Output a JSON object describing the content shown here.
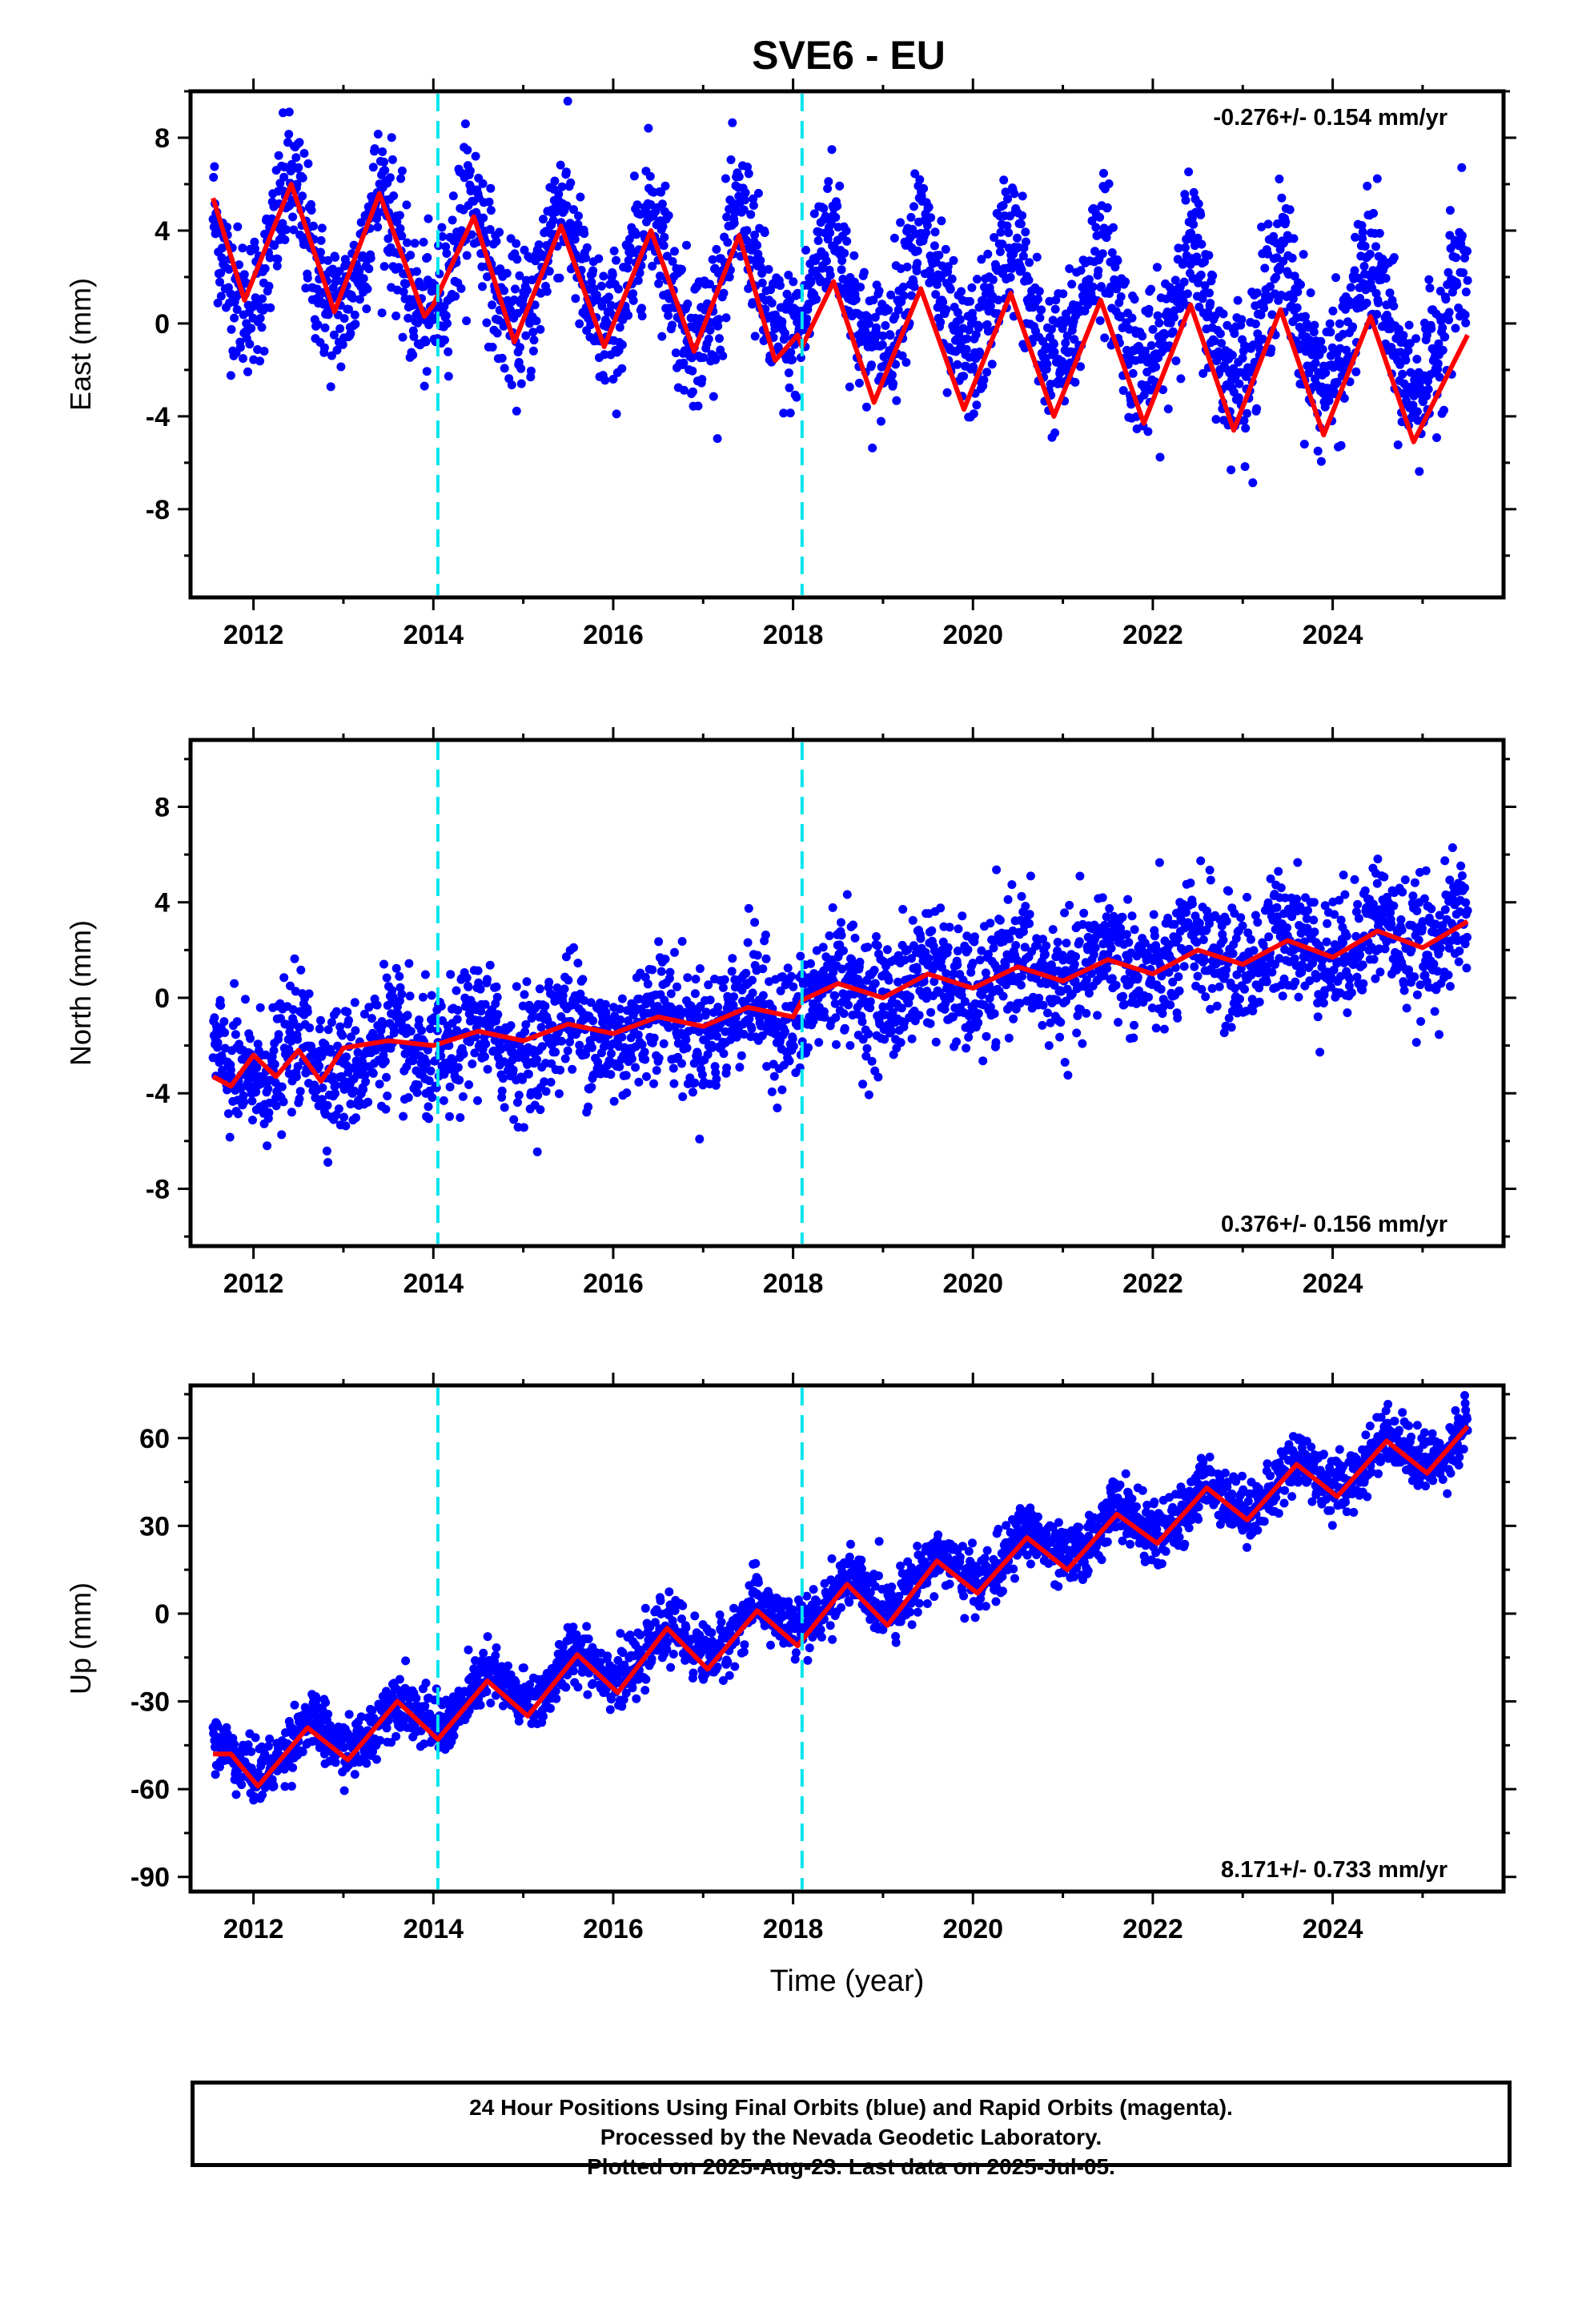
{
  "title": "SVE6 - EU",
  "colors": {
    "data": "#0000ff",
    "model": "#ff0000",
    "step": "#00e5ee",
    "frame": "#000000"
  },
  "chart_data": [
    {
      "type": "scatter",
      "panel": "east",
      "ylabel": "East (mm)",
      "xlabel": "",
      "rate": "-0.276+/- 0.154 mm/yr",
      "rate_position": "top-right",
      "xlim": [
        2011.3,
        2025.9
      ],
      "ylim": [
        -11.8,
        10
      ],
      "xticks": [
        2012,
        2014,
        2016,
        2018,
        2020,
        2022,
        2024
      ],
      "xtick_labels": [
        "2012",
        "2014",
        "2016",
        "2018",
        "2020",
        "2022",
        "2024"
      ],
      "yticks": [
        8,
        4,
        0,
        -4,
        -8
      ],
      "ytick_labels": [
        "8",
        "4",
        "0",
        "-4",
        "-8"
      ],
      "step_lines": [
        2014.05,
        2018.1
      ],
      "series": [
        {
          "kind": "points",
          "x_range": [
            2011.55,
            2025.5
          ],
          "trend_start": 3.2,
          "trend_rate": -0.276,
          "offset_2014": 0.0,
          "offset_2018": 0.0,
          "annual_amplitude": 2.6,
          "annual_peak": 0.42,
          "semiannual_amplitude": 0.4,
          "noise": 1.5
        },
        {
          "kind": "model",
          "x": [
            2011.55,
            2011.9,
            2012.42,
            2012.9,
            2013.4,
            2013.9,
            2014.0,
            2014.45,
            2014.9,
            2015.42,
            2015.9,
            2016.42,
            2016.9,
            2017.4,
            2017.8,
            2018.05,
            2018.1,
            2018.45,
            2018.9,
            2019.42,
            2019.9,
            2020.42,
            2020.9,
            2021.42,
            2021.9,
            2022.42,
            2022.9,
            2023.42,
            2023.9,
            2024.42,
            2024.9,
            2025.5
          ],
          "y": [
            5.4,
            1.0,
            6.0,
            0.5,
            5.6,
            0.3,
            0.8,
            4.6,
            -0.8,
            4.2,
            -1.0,
            4.0,
            -1.2,
            3.8,
            -1.6,
            -0.5,
            -1.0,
            1.8,
            -3.4,
            1.5,
            -3.7,
            1.3,
            -4.0,
            1.0,
            -4.3,
            0.8,
            -4.6,
            0.6,
            -4.8,
            0.3,
            -5.1,
            -0.5
          ]
        }
      ]
    },
    {
      "type": "scatter",
      "panel": "north",
      "ylabel": "North (mm)",
      "xlabel": "",
      "rate": "0.376+/- 0.156 mm/yr",
      "rate_position": "bottom-right",
      "xlim": [
        2011.3,
        2025.9
      ],
      "ylim": [
        -10.4,
        10.8
      ],
      "xticks": [
        2012,
        2014,
        2016,
        2018,
        2020,
        2022,
        2024
      ],
      "xtick_labels": [
        "2012",
        "2014",
        "2016",
        "2018",
        "2020",
        "2022",
        "2024"
      ],
      "yticks": [
        8,
        4,
        0,
        -4,
        -8
      ],
      "ytick_labels": [
        "8",
        "4",
        "0",
        "-4",
        "-8"
      ],
      "step_lines": [
        2014.05,
        2018.1
      ],
      "series": [
        {
          "kind": "points",
          "x_range": [
            2011.55,
            2025.5
          ],
          "trend_start": -3.0,
          "trend_rate": 0.376,
          "offset_2014": 0.0,
          "offset_2018": 0.6,
          "annual_amplitude": 0.75,
          "annual_peak": 0.5,
          "semiannual_amplitude": 0.2,
          "noise": 1.3
        },
        {
          "kind": "model",
          "x": [
            2011.55,
            2011.75,
            2012.0,
            2012.25,
            2012.5,
            2012.75,
            2013.0,
            2013.5,
            2014.0,
            2014.5,
            2015.0,
            2015.5,
            2016.0,
            2016.5,
            2017.0,
            2017.5,
            2018.0,
            2018.1,
            2018.5,
            2019.0,
            2019.5,
            2020.0,
            2020.5,
            2021.0,
            2021.5,
            2022.0,
            2022.5,
            2023.0,
            2023.5,
            2024.0,
            2024.5,
            2025.0,
            2025.5
          ],
          "y": [
            -3.3,
            -3.7,
            -2.4,
            -3.3,
            -2.2,
            -3.5,
            -2.1,
            -1.8,
            -2.0,
            -1.4,
            -1.8,
            -1.1,
            -1.5,
            -0.8,
            -1.2,
            -0.4,
            -0.8,
            -0.1,
            0.6,
            0.0,
            1.0,
            0.4,
            1.3,
            0.7,
            1.6,
            1.0,
            2.0,
            1.4,
            2.4,
            1.7,
            2.8,
            2.1,
            3.2
          ]
        }
      ]
    },
    {
      "type": "scatter",
      "panel": "up",
      "ylabel": "Up (mm)",
      "xlabel": "Time (year)",
      "rate": "8.171+/- 0.733 mm/yr",
      "rate_position": "bottom-right",
      "xlim": [
        2011.3,
        2025.9
      ],
      "ylim": [
        -95,
        78
      ],
      "xticks": [
        2012,
        2014,
        2016,
        2018,
        2020,
        2022,
        2024
      ],
      "xtick_labels": [
        "2012",
        "2014",
        "2016",
        "2018",
        "2020",
        "2022",
        "2024"
      ],
      "yticks": [
        60,
        30,
        0,
        -30,
        -60,
        -90
      ],
      "ytick_labels": [
        "60",
        "30",
        "0",
        "-30",
        "-60",
        "-90"
      ],
      "step_lines": [
        2014.05,
        2018.1
      ],
      "series": [
        {
          "kind": "points",
          "x_range": [
            2011.55,
            2025.5
          ],
          "trend_start": -53,
          "trend_rate": 8.171,
          "offset_2014": 0.0,
          "offset_2018": 0.0,
          "annual_amplitude": 6.5,
          "annual_peak": 0.6,
          "semiannual_amplitude": 0.8,
          "noise": 5.0
        },
        {
          "kind": "model",
          "x": [
            2011.55,
            2011.75,
            2012.05,
            2012.6,
            2013.05,
            2013.6,
            2014.05,
            2014.6,
            2015.05,
            2015.6,
            2016.05,
            2016.6,
            2017.05,
            2017.6,
            2018.05,
            2018.6,
            2019.05,
            2019.6,
            2020.05,
            2020.6,
            2021.05,
            2021.6,
            2022.05,
            2022.6,
            2023.05,
            2023.6,
            2024.05,
            2024.6,
            2025.05,
            2025.5
          ],
          "y": [
            -48,
            -48,
            -59,
            -39,
            -50,
            -30,
            -43,
            -23,
            -35,
            -14,
            -27,
            -5,
            -19,
            1,
            -11,
            10,
            -4,
            18,
            7,
            26,
            15,
            34,
            24,
            43,
            32,
            51,
            40,
            59,
            48,
            64
          ]
        }
      ]
    }
  ],
  "footer": {
    "line1": "24 Hour Positions Using Final Orbits (blue) and Rapid Orbits (magenta).",
    "line2": "Processed by the Nevada Geodetic Laboratory.",
    "line3": "Plotted on 2025-Aug-23. Last data on 2025-Jul-05."
  }
}
